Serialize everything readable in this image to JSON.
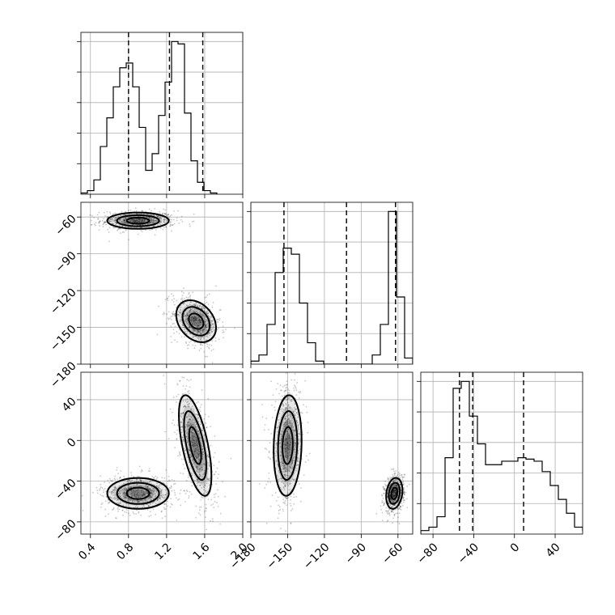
{
  "chart_data": {
    "type": "corner",
    "parameters": [
      {
        "name": "",
        "range": [
          0.3,
          2.0
        ],
        "ticks": [
          0.4,
          0.8,
          1.2,
          1.6,
          2.0
        ],
        "tick_labels": [
          "0.4",
          "0.8",
          "1.2",
          "1.6",
          "2.0"
        ]
      },
      {
        "name": "",
        "range": [
          -180,
          -48
        ],
        "ticks": [
          -180,
          -150,
          -120,
          -90,
          -60
        ],
        "tick_labels": [
          "−180",
          "−150",
          "−120",
          "−90",
          "−60"
        ]
      },
      {
        "name": "",
        "range": [
          -92,
          67
        ],
        "ticks": [
          -80,
          -40,
          0,
          40
        ],
        "tick_labels": [
          "−80",
          "−40",
          "0",
          "40"
        ]
      }
    ],
    "histograms": [
      {
        "param": 0,
        "bin_start": 0.3,
        "bin_width": 0.068,
        "counts": [
          0.5,
          1.5,
          6,
          20,
          32,
          45,
          53,
          55,
          45,
          28,
          10,
          17,
          33,
          47,
          64,
          63,
          34,
          14,
          5,
          1.5,
          0.5
        ],
        "quantiles": [
          0.8,
          1.23,
          1.58
        ]
      },
      {
        "param": 1,
        "bin_start": -180,
        "bin_width": 6.6,
        "counts": [
          1,
          3,
          13,
          30,
          38,
          36,
          20,
          7,
          1,
          0,
          0,
          0,
          0,
          0,
          0,
          3,
          13,
          50,
          22,
          2
        ],
        "quantiles": [
          -153,
          -102,
          -62
        ]
      },
      {
        "param": 2,
        "bin_start": -92,
        "bin_width": 7.95,
        "counts": [
          0.5,
          1,
          2.5,
          11,
          21,
          22,
          17,
          13,
          10,
          10,
          10.5,
          10.5,
          11,
          10.8,
          10.5,
          9,
          7,
          5,
          3,
          1,
          0.5
        ],
        "quantiles": [
          -54,
          -41,
          9
        ]
      }
    ],
    "scatter_2d": [
      {
        "x_param": 0,
        "y_param": 1,
        "modes": [
          {
            "center": [
              0.9,
              -63
            ],
            "sigma": [
              0.17,
              3.5
            ],
            "rho": 0
          },
          {
            "center": [
              1.51,
              -145
            ],
            "sigma": [
              0.11,
              9
            ],
            "rho": -0.3
          }
        ]
      },
      {
        "x_param": 0,
        "y_param": 2,
        "modes": [
          {
            "center": [
              0.9,
              -52
            ],
            "sigma": [
              0.17,
              8
            ],
            "rho": 0
          },
          {
            "center": [
              1.5,
              -5
            ],
            "sigma": [
              0.09,
              26
            ],
            "rho": -0.6
          }
        ]
      },
      {
        "x_param": 1,
        "y_param": 2,
        "modes": [
          {
            "center": [
              -150,
              -5
            ],
            "sigma": [
              6,
              26
            ],
            "rho": 0.1
          },
          {
            "center": [
              -63,
              -52
            ],
            "sigma": [
              3.5,
              8
            ],
            "rho": 0.2
          }
        ]
      }
    ],
    "grid": true,
    "title": ""
  }
}
